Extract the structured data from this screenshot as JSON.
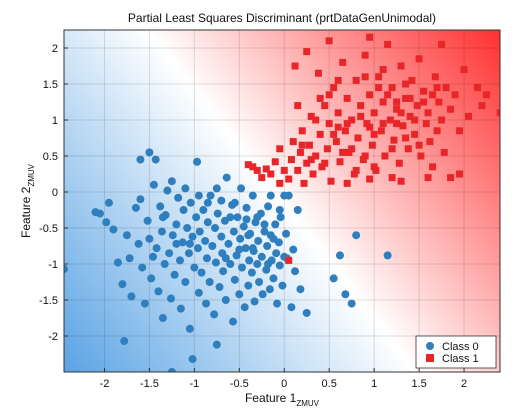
{
  "chart_data": {
    "type": "scatter",
    "title": "Partial Least Squares Discriminant (prtDataGenUnimodal)",
    "xlabel": "Feature 1",
    "xlabel_sub": "ZMUV",
    "ylabel": "Feature 2",
    "ylabel_sub": "ZMUV",
    "xlim": [
      -2.45,
      2.4
    ],
    "ylim": [
      -2.5,
      2.25
    ],
    "xticks": [
      -2,
      -1.5,
      -1,
      -0.5,
      0,
      0.5,
      1,
      1.5,
      2
    ],
    "yticks": [
      -2,
      -1.5,
      -1,
      -0.5,
      0,
      0.5,
      1,
      1.5,
      2
    ],
    "grid": true,
    "legend_placement": "bottom-right",
    "background": "decision-surface gradient from blue (class 0 side) to red (class 1 side)",
    "colors": {
      "class0": "#2f7fbe",
      "class1": "#e8262a",
      "bg_blue": "#5aa3e4",
      "bg_red": "#ff3030"
    },
    "series": [
      {
        "name": "Class 0",
        "marker": "circle",
        "color": "#2f7fbe",
        "points": [
          [
            -2.45,
            -1.07
          ],
          [
            -2.1,
            -0.28
          ],
          [
            -2.05,
            -0.3
          ],
          [
            -1.98,
            -0.42
          ],
          [
            -1.95,
            -0.15
          ],
          [
            -1.9,
            -0.52
          ],
          [
            -1.85,
            -0.98
          ],
          [
            -1.8,
            -1.28
          ],
          [
            -1.78,
            -2.07
          ],
          [
            -1.75,
            -0.6
          ],
          [
            -1.72,
            -0.92
          ],
          [
            -1.7,
            -1.45
          ],
          [
            -1.65,
            -0.22
          ],
          [
            -1.62,
            -0.72
          ],
          [
            -1.6,
            -0.1
          ],
          [
            -1.58,
            -1.05
          ],
          [
            -1.55,
            -1.55
          ],
          [
            -1.52,
            -0.4
          ],
          [
            -1.5,
            0.55
          ],
          [
            -1.5,
            -0.65
          ],
          [
            -1.48,
            -1.2
          ],
          [
            -1.46,
            -0.9
          ],
          [
            -1.45,
            0.1
          ],
          [
            -1.43,
            0.45
          ],
          [
            -1.42,
            -0.78
          ],
          [
            -1.4,
            -1.38
          ],
          [
            -1.38,
            -0.2
          ],
          [
            -1.36,
            -0.55
          ],
          [
            -1.35,
            -1.75
          ],
          [
            -1.33,
            -1.0
          ],
          [
            -1.32,
            -0.32
          ],
          [
            -1.3,
            0.02
          ],
          [
            -1.28,
            -0.85
          ],
          [
            -1.26,
            -1.48
          ],
          [
            -1.25,
            0.15
          ],
          [
            -1.24,
            -0.6
          ],
          [
            -1.22,
            -1.15
          ],
          [
            -1.2,
            -0.45
          ],
          [
            -1.18,
            -0.08
          ],
          [
            -1.16,
            -0.95
          ],
          [
            -1.15,
            -1.62
          ],
          [
            -1.13,
            -0.7
          ],
          [
            -1.12,
            -0.25
          ],
          [
            -1.1,
            -1.25
          ],
          [
            -1.08,
            -0.5
          ],
          [
            -1.06,
            -0.85
          ],
          [
            -1.05,
            -1.9
          ],
          [
            -1.04,
            -0.15
          ],
          [
            -1.02,
            -0.62
          ],
          [
            -1.0,
            -1.05
          ],
          [
            -0.98,
            -0.35
          ],
          [
            -0.97,
            0.42
          ],
          [
            -0.96,
            -0.78
          ],
          [
            -0.95,
            -1.4
          ],
          [
            -0.94,
            -0.55
          ],
          [
            -0.92,
            -1.12
          ],
          [
            -0.9,
            -0.25
          ],
          [
            -0.88,
            -0.68
          ],
          [
            -0.87,
            -1.55
          ],
          [
            -0.86,
            -0.92
          ],
          [
            -0.85,
            -0.42
          ],
          [
            -0.83,
            -1.25
          ],
          [
            -0.82,
            -0.05
          ],
          [
            -0.8,
            -0.75
          ],
          [
            -0.78,
            -1.7
          ],
          [
            -0.77,
            -0.5
          ],
          [
            -0.76,
            -0.98
          ],
          [
            -0.75,
            -2.12
          ],
          [
            -0.74,
            -0.3
          ],
          [
            -0.72,
            -1.32
          ],
          [
            -0.7,
            -0.62
          ],
          [
            -0.69,
            -0.85
          ],
          [
            -0.68,
            -1.1
          ],
          [
            -0.66,
            -0.4
          ],
          [
            -0.65,
            -1.5
          ],
          [
            -0.64,
            0.2
          ],
          [
            -0.62,
            -0.72
          ],
          [
            -0.6,
            -1.0
          ],
          [
            -0.58,
            -0.18
          ],
          [
            -0.57,
            -1.8
          ],
          [
            -0.56,
            -0.55
          ],
          [
            -0.55,
            -1.22
          ],
          [
            -0.53,
            -0.88
          ],
          [
            -0.52,
            -0.35
          ],
          [
            -0.5,
            -1.42
          ],
          [
            -0.49,
            -0.65
          ],
          [
            -0.48,
            0.05
          ],
          [
            -0.47,
            -1.05
          ],
          [
            -0.45,
            -0.48
          ],
          [
            -0.44,
            -1.6
          ],
          [
            -0.43,
            -0.78
          ],
          [
            -0.42,
            -0.22
          ],
          [
            -0.4,
            -1.3
          ],
          [
            -0.39,
            -0.95
          ],
          [
            -0.38,
            -0.58
          ],
          [
            -0.36,
            -1.12
          ],
          [
            -0.35,
            -0.05
          ],
          [
            -0.34,
            -0.82
          ],
          [
            -0.33,
            -1.52
          ],
          [
            -0.32,
            -0.42
          ],
          [
            -0.3,
            -1.0
          ],
          [
            -0.29,
            -0.68
          ],
          [
            -0.28,
            -1.25
          ],
          [
            -0.26,
            -0.3
          ],
          [
            -0.25,
            -0.9
          ],
          [
            -0.24,
            -1.42
          ],
          [
            -0.22,
            -0.55
          ],
          [
            -0.2,
            -1.08
          ],
          [
            -0.19,
            -0.75
          ],
          [
            -0.18,
            -0.2
          ],
          [
            -0.16,
            -1.35
          ],
          [
            -0.15,
            -0.6
          ],
          [
            -0.14,
            -0.95
          ],
          [
            -0.12,
            -1.2
          ],
          [
            -0.1,
            -0.45
          ],
          [
            -0.09,
            -0.85
          ],
          [
            -0.08,
            -1.55
          ],
          [
            -0.06,
            -0.7
          ],
          [
            -0.05,
            -1.02
          ],
          [
            -0.04,
            -0.35
          ],
          [
            -0.02,
            -1.3
          ],
          [
            0.0,
            -0.9
          ],
          [
            0.02,
            -0.58
          ],
          [
            0.05,
            -0.05
          ],
          [
            0.08,
            -1.6
          ],
          [
            0.1,
            -0.8
          ],
          [
            0.12,
            -1.1
          ],
          [
            0.15,
            -0.25
          ],
          [
            0.18,
            -1.35
          ],
          [
            0.25,
            -1.68
          ],
          [
            0.55,
            -1.2
          ],
          [
            0.62,
            -0.88
          ],
          [
            0.68,
            -1.42
          ],
          [
            0.75,
            -1.55
          ],
          [
            0.8,
            -0.6
          ],
          [
            1.15,
            -0.88
          ],
          [
            -1.02,
            -2.32
          ],
          [
            -0.85,
            -0.15
          ],
          [
            -1.25,
            -2.5
          ],
          [
            -1.6,
            0.45
          ],
          [
            -0.7,
            -0.12
          ],
          [
            -0.6,
            -0.35
          ],
          [
            -1.35,
            -0.35
          ],
          [
            -0.95,
            -0.05
          ],
          [
            -0.75,
            0.05
          ],
          [
            -1.1,
            0.05
          ],
          [
            0.0,
            -0.05
          ],
          [
            -0.15,
            -0.05
          ],
          [
            -0.42,
            -0.38
          ],
          [
            -0.55,
            -0.15
          ],
          [
            -0.4,
            -0.6
          ],
          [
            -0.3,
            -0.35
          ],
          [
            -0.22,
            -0.45
          ],
          [
            -0.05,
            -0.25
          ],
          [
            -0.12,
            -0.65
          ],
          [
            0.03,
            -0.92
          ],
          [
            -0.35,
            -0.78
          ],
          [
            -0.18,
            -1.0
          ],
          [
            -0.5,
            -0.8
          ],
          [
            -0.65,
            -0.92
          ],
          [
            -1.05,
            -0.72
          ],
          [
            -1.2,
            -0.72
          ]
        ]
      },
      {
        "name": "Class 1",
        "marker": "square",
        "color": "#e8262a",
        "points": [
          [
            -0.4,
            0.38
          ],
          [
            -0.35,
            0.35
          ],
          [
            -0.3,
            0.3
          ],
          [
            -0.25,
            0.2
          ],
          [
            -0.2,
            0.32
          ],
          [
            -0.15,
            0.25
          ],
          [
            -0.1,
            0.42
          ],
          [
            -0.05,
            0.6
          ],
          [
            0.0,
            0.3
          ],
          [
            0.05,
            0.18
          ],
          [
            0.08,
            0.45
          ],
          [
            0.1,
            0.7
          ],
          [
            0.12,
            1.75
          ],
          [
            0.15,
            0.3
          ],
          [
            0.18,
            0.55
          ],
          [
            0.2,
            0.85
          ],
          [
            0.22,
            0.12
          ],
          [
            0.25,
            0.4
          ],
          [
            0.28,
            0.65
          ],
          [
            0.3,
            1.05
          ],
          [
            0.32,
            0.25
          ],
          [
            0.35,
            0.5
          ],
          [
            0.38,
            1.65
          ],
          [
            0.4,
            0.8
          ],
          [
            0.42,
            0.35
          ],
          [
            0.45,
            1.2
          ],
          [
            0.48,
            0.6
          ],
          [
            0.5,
            0.95
          ],
          [
            0.52,
            0.15
          ],
          [
            0.55,
            1.45
          ],
          [
            0.58,
            0.7
          ],
          [
            0.6,
            1.1
          ],
          [
            0.62,
            0.42
          ],
          [
            0.65,
            1.8
          ],
          [
            0.68,
            0.85
          ],
          [
            0.7,
            1.3
          ],
          [
            0.72,
            0.55
          ],
          [
            0.75,
            1.0
          ],
          [
            0.78,
            0.25
          ],
          [
            0.8,
            1.55
          ],
          [
            0.82,
            0.75
          ],
          [
            0.85,
            1.2
          ],
          [
            0.88,
            0.45
          ],
          [
            0.9,
            1.9
          ],
          [
            0.92,
            0.95
          ],
          [
            0.95,
            1.35
          ],
          [
            0.98,
            0.65
          ],
          [
            1.0,
            1.1
          ],
          [
            1.02,
            0.3
          ],
          [
            1.05,
            1.6
          ],
          [
            1.08,
            0.85
          ],
          [
            1.1,
            1.25
          ],
          [
            1.12,
            0.5
          ],
          [
            1.15,
            2.05
          ],
          [
            1.18,
            1.0
          ],
          [
            1.2,
            1.45
          ],
          [
            1.22,
            0.72
          ],
          [
            1.25,
            1.15
          ],
          [
            1.28,
            0.4
          ],
          [
            1.3,
            1.75
          ],
          [
            1.32,
            0.92
          ],
          [
            1.35,
            1.3
          ],
          [
            1.38,
            0.6
          ],
          [
            1.4,
            1.05
          ],
          [
            1.42,
            1.55
          ],
          [
            1.45,
            0.8
          ],
          [
            1.48,
            1.2
          ],
          [
            1.5,
            1.85
          ],
          [
            1.52,
            0.5
          ],
          [
            1.55,
            1.4
          ],
          [
            1.58,
            0.95
          ],
          [
            1.6,
            1.1
          ],
          [
            1.62,
            0.7
          ],
          [
            1.65,
            1.35
          ],
          [
            1.68,
            1.6
          ],
          [
            1.7,
            0.85
          ],
          [
            1.72,
            1.25
          ],
          [
            1.75,
            1.0
          ],
          [
            1.78,
            0.55
          ],
          [
            1.8,
            1.45
          ],
          [
            1.85,
            1.15
          ],
          [
            1.9,
            1.35
          ],
          [
            1.95,
            0.85
          ],
          [
            2.0,
            1.7
          ],
          [
            2.05,
            1.05
          ],
          [
            2.2,
            1.2
          ],
          [
            2.4,
            1.1
          ],
          [
            1.3,
            0.15
          ],
          [
            1.6,
            0.2
          ],
          [
            1.85,
            0.2
          ],
          [
            1.2,
            0.2
          ],
          [
            0.95,
            0.18
          ],
          [
            0.7,
            0.12
          ],
          [
            -0.05,
            0.12
          ],
          [
            0.05,
            -0.95
          ],
          [
            0.2,
            0.65
          ],
          [
            0.35,
            1.0
          ],
          [
            0.5,
            1.35
          ],
          [
            0.6,
            0.9
          ],
          [
            0.75,
            0.6
          ],
          [
            0.9,
            0.5
          ],
          [
            1.0,
            0.8
          ],
          [
            1.1,
            0.95
          ],
          [
            1.25,
            0.95
          ],
          [
            1.35,
            0.75
          ],
          [
            1.45,
            1.0
          ],
          [
            1.55,
            1.25
          ],
          [
            0.85,
            1.05
          ],
          [
            0.65,
            0.55
          ],
          [
            0.45,
            0.4
          ],
          [
            1.15,
            1.35
          ],
          [
            1.35,
            1.5
          ],
          [
            0.7,
            0.95
          ],
          [
            0.95,
            0.9
          ],
          [
            1.05,
            1.45
          ],
          [
            0.55,
            0.8
          ],
          [
            1.25,
            1.25
          ],
          [
            1.4,
            1.3
          ],
          [
            0.8,
            0.3
          ],
          [
            1.0,
            0.35
          ],
          [
            1.2,
            0.6
          ],
          [
            0.3,
            0.45
          ],
          [
            0.15,
            1.2
          ],
          [
            0.4,
            1.3
          ],
          [
            0.6,
            1.55
          ],
          [
            0.9,
            1.6
          ],
          [
            1.1,
            1.7
          ],
          [
            1.3,
            1.1
          ],
          [
            1.5,
            0.65
          ],
          [
            1.7,
            1.45
          ],
          [
            0.5,
            2.1
          ],
          [
            0.25,
            1.95
          ],
          [
            0.95,
            2.15
          ],
          [
            1.75,
            2.05
          ],
          [
            2.15,
            1.45
          ],
          [
            2.25,
            1.35
          ],
          [
            1.65,
            0.35
          ],
          [
            1.95,
            0.25
          ]
        ]
      }
    ]
  }
}
